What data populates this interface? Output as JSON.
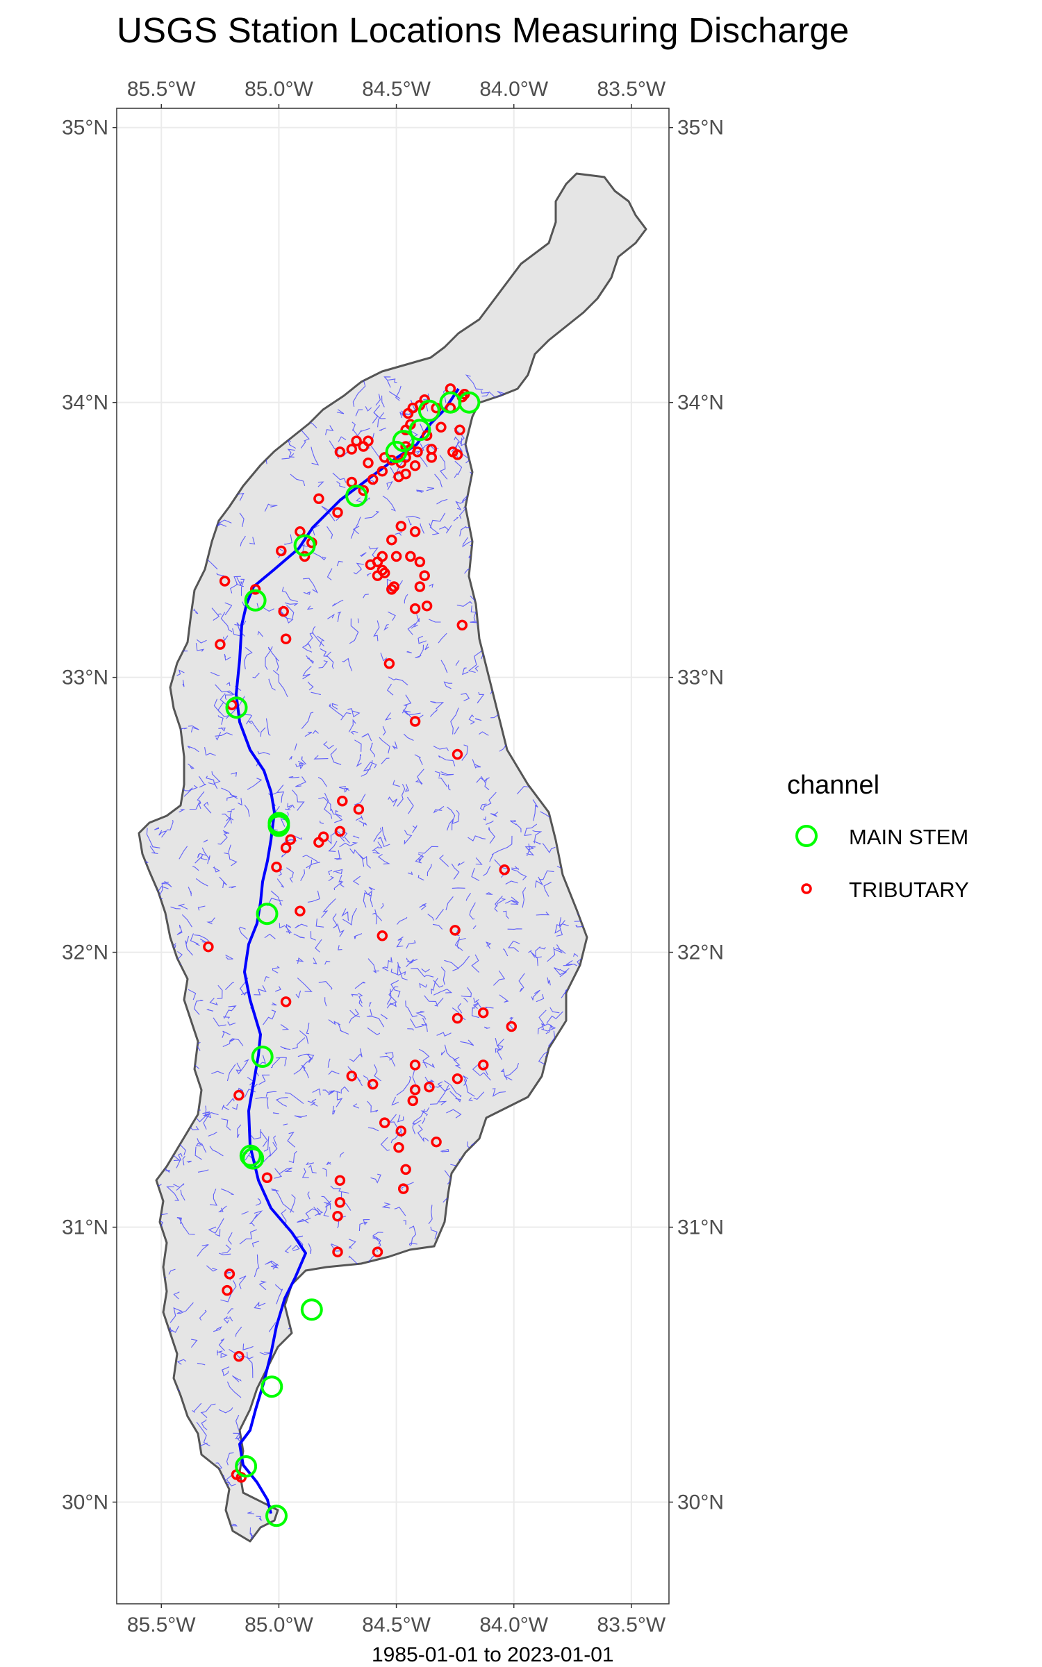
{
  "title": "USGS Station Locations Measuring Discharge",
  "caption": "1985-01-01 to 2023-01-01",
  "axes": {
    "lon_labels": [
      "85.5°W",
      "85.0°W",
      "84.5°W",
      "84.0°W",
      "83.5°W"
    ],
    "lon_values": [
      -85.5,
      -85.0,
      -84.5,
      -84.0,
      -83.5
    ],
    "lat_labels": [
      "35°N",
      "34°N",
      "33°N",
      "32°N",
      "31°N",
      "30°N"
    ],
    "lat_values": [
      35,
      34,
      33,
      32,
      31,
      30
    ],
    "lon_range": [
      -85.69,
      -83.34
    ],
    "lat_range": [
      29.63,
      35.07
    ]
  },
  "legend": {
    "title": "channel",
    "items": [
      {
        "label": "MAIN STEM",
        "color": "#00ff00"
      },
      {
        "label": "TRIBUTARY",
        "color": "#ff0000"
      }
    ]
  },
  "colors": {
    "basin_fill": "#e5e5e5",
    "basin_outline": "#555555",
    "river": "#0000ff",
    "tributary_lines": "#3333ff",
    "main_stem": "#00ff00",
    "tributary": "#ff0000"
  },
  "chart_data": {
    "type": "scatter",
    "title": "USGS Station Locations Measuring Discharge",
    "xlim": [
      -85.69,
      -83.34
    ],
    "ylim": [
      29.63,
      35.07
    ],
    "grid": true,
    "legend_position": "right",
    "series": [
      {
        "name": "MAIN STEM",
        "points": [
          [
            -84.19,
            34.0
          ],
          [
            -84.36,
            33.97
          ],
          [
            -84.27,
            34.0
          ],
          [
            -84.4,
            33.9
          ],
          [
            -84.47,
            33.86
          ],
          [
            -84.5,
            33.82
          ],
          [
            -84.67,
            33.66
          ],
          [
            -84.89,
            33.48
          ],
          [
            -85.1,
            33.28
          ],
          [
            -85.18,
            32.89
          ],
          [
            -85.0,
            32.47
          ],
          [
            -85.0,
            32.46
          ],
          [
            -85.05,
            32.14
          ],
          [
            -85.07,
            31.62
          ],
          [
            -85.12,
            31.26
          ],
          [
            -85.11,
            31.25
          ],
          [
            -84.86,
            30.7
          ],
          [
            -85.03,
            30.42
          ],
          [
            -85.14,
            30.13
          ],
          [
            -85.01,
            29.95
          ]
        ]
      },
      {
        "name": "TRIBUTARY",
        "points": [
          [
            -84.21,
            34.03
          ],
          [
            -84.22,
            34.02
          ],
          [
            -84.27,
            34.05
          ],
          [
            -84.27,
            33.98
          ],
          [
            -84.33,
            33.98
          ],
          [
            -84.38,
            34.01
          ],
          [
            -84.4,
            33.99
          ],
          [
            -84.43,
            33.98
          ],
          [
            -84.45,
            33.96
          ],
          [
            -84.44,
            33.92
          ],
          [
            -84.46,
            33.9
          ],
          [
            -84.37,
            33.88
          ],
          [
            -84.31,
            33.91
          ],
          [
            -84.23,
            33.9
          ],
          [
            -84.26,
            33.82
          ],
          [
            -84.24,
            33.81
          ],
          [
            -84.35,
            33.83
          ],
          [
            -84.35,
            33.8
          ],
          [
            -84.41,
            33.82
          ],
          [
            -84.44,
            33.83
          ],
          [
            -84.46,
            33.84
          ],
          [
            -84.46,
            33.8
          ],
          [
            -84.48,
            33.78
          ],
          [
            -84.52,
            33.79
          ],
          [
            -84.55,
            33.8
          ],
          [
            -84.42,
            33.77
          ],
          [
            -84.46,
            33.74
          ],
          [
            -84.49,
            33.73
          ],
          [
            -84.62,
            33.86
          ],
          [
            -84.64,
            33.84
          ],
          [
            -84.67,
            33.86
          ],
          [
            -84.69,
            33.83
          ],
          [
            -84.74,
            33.82
          ],
          [
            -84.62,
            33.78
          ],
          [
            -84.56,
            33.75
          ],
          [
            -84.6,
            33.72
          ],
          [
            -84.64,
            33.68
          ],
          [
            -84.69,
            33.71
          ],
          [
            -84.75,
            33.6
          ],
          [
            -84.83,
            33.65
          ],
          [
            -84.48,
            33.55
          ],
          [
            -84.42,
            33.53
          ],
          [
            -84.52,
            33.5
          ],
          [
            -84.44,
            33.44
          ],
          [
            -84.5,
            33.44
          ],
          [
            -84.56,
            33.44
          ],
          [
            -84.58,
            33.42
          ],
          [
            -84.61,
            33.41
          ],
          [
            -84.56,
            33.39
          ],
          [
            -84.55,
            33.38
          ],
          [
            -84.58,
            33.37
          ],
          [
            -84.51,
            33.33
          ],
          [
            -84.52,
            33.32
          ],
          [
            -84.4,
            33.42
          ],
          [
            -84.38,
            33.37
          ],
          [
            -84.4,
            33.33
          ],
          [
            -84.37,
            33.26
          ],
          [
            -84.42,
            33.25
          ],
          [
            -84.22,
            33.19
          ],
          [
            -84.86,
            33.49
          ],
          [
            -84.91,
            33.53
          ],
          [
            -84.89,
            33.44
          ],
          [
            -84.99,
            33.46
          ],
          [
            -85.1,
            33.32
          ],
          [
            -85.23,
            33.35
          ],
          [
            -84.98,
            33.24
          ],
          [
            -84.97,
            33.14
          ],
          [
            -85.25,
            33.12
          ],
          [
            -84.53,
            33.05
          ],
          [
            -84.42,
            32.84
          ],
          [
            -84.24,
            32.72
          ],
          [
            -85.2,
            32.9
          ],
          [
            -84.73,
            32.55
          ],
          [
            -84.66,
            32.52
          ],
          [
            -84.74,
            32.44
          ],
          [
            -84.81,
            32.42
          ],
          [
            -84.83,
            32.4
          ],
          [
            -84.97,
            32.38
          ],
          [
            -84.95,
            32.41
          ],
          [
            -85.01,
            32.31
          ],
          [
            -84.04,
            32.3
          ],
          [
            -84.91,
            32.15
          ],
          [
            -84.56,
            32.06
          ],
          [
            -84.25,
            32.08
          ],
          [
            -85.3,
            32.02
          ],
          [
            -84.97,
            31.82
          ],
          [
            -84.24,
            31.76
          ],
          [
            -84.13,
            31.78
          ],
          [
            -84.01,
            31.73
          ],
          [
            -84.42,
            31.59
          ],
          [
            -84.13,
            31.59
          ],
          [
            -84.6,
            31.52
          ],
          [
            -84.42,
            31.5
          ],
          [
            -84.36,
            31.51
          ],
          [
            -84.43,
            31.46
          ],
          [
            -84.24,
            31.54
          ],
          [
            -84.69,
            31.55
          ],
          [
            -85.17,
            31.48
          ],
          [
            -84.55,
            31.38
          ],
          [
            -84.48,
            31.35
          ],
          [
            -84.33,
            31.31
          ],
          [
            -84.49,
            31.29
          ],
          [
            -84.46,
            31.21
          ],
          [
            -84.47,
            31.14
          ],
          [
            -85.05,
            31.18
          ],
          [
            -84.74,
            31.17
          ],
          [
            -84.74,
            31.09
          ],
          [
            -84.75,
            31.04
          ],
          [
            -84.75,
            30.91
          ],
          [
            -84.58,
            30.91
          ],
          [
            -85.21,
            30.83
          ],
          [
            -85.22,
            30.77
          ],
          [
            -85.17,
            30.53
          ],
          [
            -85.18,
            30.1
          ],
          [
            -85.16,
            30.09
          ]
        ]
      }
    ]
  }
}
